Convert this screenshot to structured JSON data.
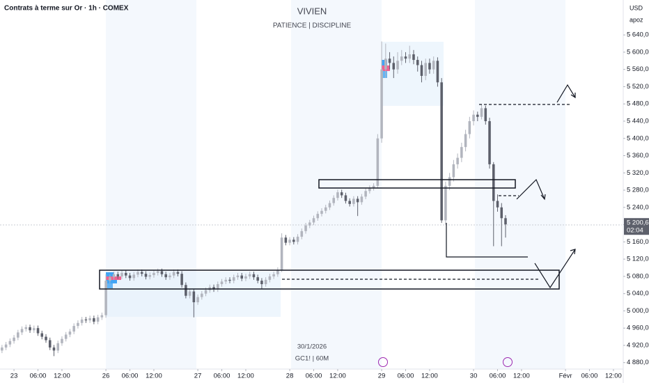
{
  "header": {
    "symbol": "Contrats à terme sur Or · 1h · COMEX",
    "currency": "USD",
    "author": "apoz"
  },
  "chart_data": {
    "type": "candlestick",
    "title": "VIVIEN",
    "subtitle": "PATIENCE | DISCIPLINE",
    "annotations": [
      "30/1/2026",
      "GC1! | 60M"
    ],
    "up_color": "#b2b5be",
    "down_color": "#5d606b",
    "ylim": [
      4865,
      5721
    ],
    "xlim": [
      -0.5,
      155.1
    ],
    "yticks": [
      {
        "value": 4880,
        "label": "4 880,0"
      },
      {
        "value": 4920,
        "label": "4 920,0"
      },
      {
        "value": 4960,
        "label": "4 960,0"
      },
      {
        "value": 5000,
        "label": "5 000,0"
      },
      {
        "value": 5040,
        "label": "5 040,0"
      },
      {
        "value": 5080,
        "label": "5 080,0"
      },
      {
        "value": 5120,
        "label": "5 120,0"
      },
      {
        "value": 5160,
        "label": "5 160,0"
      },
      {
        "value": 5200,
        "label": "5 200,0"
      },
      {
        "value": 5240,
        "label": "5 240,0"
      },
      {
        "value": 5280,
        "label": "5 280,0"
      },
      {
        "value": 5320,
        "label": "5 320,0"
      },
      {
        "value": 5360,
        "label": "5 360,0"
      },
      {
        "value": 5400,
        "label": "5 400,0"
      },
      {
        "value": 5440,
        "label": "5 440,0"
      },
      {
        "value": 5480,
        "label": "5 480,0"
      },
      {
        "value": 5520,
        "label": "5 520,0"
      },
      {
        "value": 5560,
        "label": "5 560,0"
      },
      {
        "value": 5600,
        "label": "5 600,0"
      },
      {
        "value": 5640,
        "label": "5 640,0"
      }
    ],
    "xticks": [
      {
        "value": 3,
        "label": "23"
      },
      {
        "value": 9,
        "label": "06:00"
      },
      {
        "value": 15,
        "label": "12:00"
      },
      {
        "value": 26,
        "label": "26"
      },
      {
        "value": 32,
        "label": "06:00"
      },
      {
        "value": 38,
        "label": "12:00"
      },
      {
        "value": 49,
        "label": "27"
      },
      {
        "value": 55,
        "label": "06:00"
      },
      {
        "value": 61,
        "label": "12:00"
      },
      {
        "value": 72,
        "label": "28"
      },
      {
        "value": 78,
        "label": "06:00"
      },
      {
        "value": 84,
        "label": "12:00"
      },
      {
        "value": 95,
        "label": "29"
      },
      {
        "value": 101,
        "label": "06:00"
      },
      {
        "value": 107,
        "label": "12:00"
      },
      {
        "value": 118,
        "label": "30"
      },
      {
        "value": 124,
        "label": "06:00"
      },
      {
        "value": 130,
        "label": "12:00"
      },
      {
        "value": 141,
        "label": "Févr"
      },
      {
        "value": 147,
        "label": "06:00"
      },
      {
        "value": 153,
        "label": "12:00"
      }
    ],
    "price_label": "5 200,6",
    "countdown": "02:04",
    "open": [
      4908,
      4915,
      4922,
      4930,
      4938,
      4950,
      4958,
      4962,
      4955,
      4960,
      4948,
      4940,
      4932,
      4915,
      4908,
      4925,
      4935,
      4945,
      4952,
      4965,
      4972,
      4980,
      4978,
      4983,
      4975,
      4985,
      4990,
      5070,
      5078,
      5085,
      5080,
      5088,
      5082,
      5076,
      5084,
      5090,
      5086,
      5079,
      5083,
      5088,
      5092,
      5085,
      5078,
      5082,
      5090,
      5086,
      5060,
      5035,
      5045,
      5020,
      5032,
      5040,
      5048,
      5055,
      5050,
      5062,
      5068,
      5072,
      5070,
      5078,
      5082,
      5075,
      5080,
      5085,
      5078,
      5070,
      5062,
      5072,
      5080,
      5085,
      5095,
      5170,
      5158,
      5165,
      5160,
      5172,
      5185,
      5198,
      5205,
      5215,
      5225,
      5232,
      5240,
      5250,
      5262,
      5275,
      5268,
      5255,
      5248,
      5260,
      5252,
      5265,
      5278,
      5285,
      5290,
      5400,
      5560,
      5585,
      5575,
      5560,
      5580,
      5590,
      5585,
      5595,
      5582,
      5570,
      5545,
      5575,
      5560,
      5580,
      5530,
      5210,
      5290,
      5310,
      5340,
      5355,
      5380,
      5410,
      5440,
      5455,
      5450,
      5470,
      5440,
      5340,
      5255,
      5240,
      5215
    ],
    "high": [
      4921,
      4928,
      4936,
      4944,
      4956,
      4964,
      4968,
      4968,
      4966,
      4966,
      4954,
      4946,
      4938,
      4921,
      4931,
      4941,
      4951,
      4958,
      4971,
      4978,
      4986,
      4986,
      4989,
      4989,
      4991,
      4996,
      5085,
      5084,
      5091,
      5091,
      5094,
      5094,
      5088,
      5090,
      5096,
      5096,
      5092,
      5089,
      5094,
      5098,
      5098,
      5091,
      5088,
      5096,
      5096,
      5092,
      5066,
      5051,
      5051,
      5038,
      5046,
      5054,
      5061,
      5061,
      5068,
      5074,
      5078,
      5078,
      5084,
      5088,
      5088,
      5086,
      5091,
      5091,
      5084,
      5076,
      5078,
      5086,
      5091,
      5101,
      5180,
      5176,
      5171,
      5171,
      5178,
      5191,
      5204,
      5211,
      5221,
      5231,
      5238,
      5246,
      5256,
      5268,
      5281,
      5281,
      5274,
      5261,
      5266,
      5266,
      5271,
      5284,
      5291,
      5296,
      5410,
      5625,
      5620,
      5600,
      5590,
      5600,
      5605,
      5600,
      5615,
      5605,
      5590,
      5580,
      5585,
      5585,
      5590,
      5588,
      5540,
      5300,
      5320,
      5350,
      5365,
      5390,
      5420,
      5450,
      5465,
      5462,
      5478,
      5476,
      5448,
      5345,
      5270,
      5250,
      5222
    ],
    "low": [
      4902,
      4909,
      4916,
      4924,
      4932,
      4944,
      4952,
      4949,
      4949,
      4942,
      4934,
      4926,
      4909,
      4895,
      4902,
      4919,
      4929,
      4939,
      4946,
      4959,
      4966,
      4972,
      4972,
      4969,
      4969,
      4979,
      4984,
      5064,
      5072,
      5074,
      5074,
      5076,
      5070,
      5070,
      5078,
      5080,
      5073,
      5073,
      5077,
      5082,
      5079,
      5072,
      5072,
      5076,
      5080,
      5054,
      5029,
      5029,
      4985,
      5014,
      5026,
      5034,
      5042,
      5044,
      5044,
      5056,
      5062,
      5064,
      5064,
      5072,
      5069,
      5069,
      5074,
      5072,
      5064,
      5050,
      5056,
      5066,
      5074,
      5079,
      5090,
      5152,
      5152,
      5154,
      5154,
      5166,
      5179,
      5192,
      5199,
      5209,
      5219,
      5226,
      5234,
      5244,
      5256,
      5262,
      5249,
      5242,
      5242,
      5220,
      5246,
      5259,
      5272,
      5279,
      5284,
      5390,
      5540,
      5560,
      5540,
      5550,
      5570,
      5575,
      5575,
      5572,
      5555,
      5530,
      5535,
      5550,
      5550,
      5520,
      5204,
      5200,
      5280,
      5300,
      5330,
      5345,
      5370,
      5400,
      5430,
      5440,
      5444,
      5432,
      5330,
      5150,
      5230,
      5150,
      5170
    ],
    "close": [
      4915,
      4922,
      4930,
      4938,
      4950,
      4958,
      4962,
      4955,
      4960,
      4948,
      4940,
      4932,
      4915,
      4908,
      4925,
      4935,
      4945,
      4952,
      4965,
      4972,
      4980,
      4978,
      4983,
      4975,
      4985,
      4990,
      5070,
      5078,
      5085,
      5080,
      5088,
      5082,
      5076,
      5084,
      5090,
      5086,
      5079,
      5083,
      5088,
      5092,
      5085,
      5078,
      5082,
      5090,
      5086,
      5060,
      5035,
      5045,
      5020,
      5032,
      5040,
      5048,
      5055,
      5050,
      5062,
      5068,
      5072,
      5070,
      5078,
      5082,
      5075,
      5080,
      5085,
      5078,
      5070,
      5062,
      5072,
      5080,
      5085,
      5095,
      5170,
      5158,
      5165,
      5160,
      5172,
      5185,
      5198,
      5205,
      5215,
      5225,
      5232,
      5240,
      5250,
      5262,
      5275,
      5268,
      5255,
      5248,
      5260,
      5252,
      5265,
      5278,
      5285,
      5290,
      5400,
      5560,
      5585,
      5575,
      5560,
      5580,
      5590,
      5585,
      5595,
      5582,
      5570,
      5545,
      5575,
      5560,
      5580,
      5530,
      5210,
      5290,
      5310,
      5340,
      5355,
      5380,
      5410,
      5440,
      5455,
      5450,
      5470,
      5440,
      5340,
      5255,
      5240,
      5215,
      5200.6
    ]
  }
}
